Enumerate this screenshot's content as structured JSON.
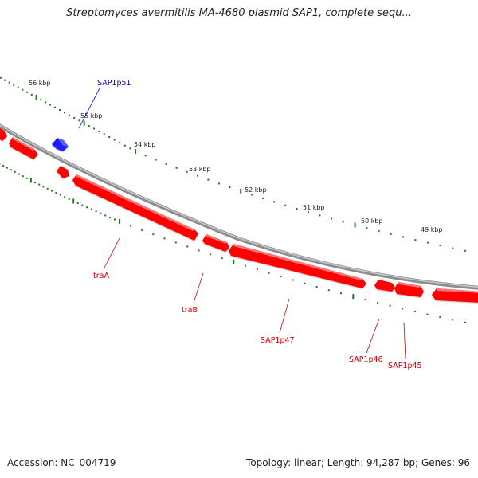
{
  "title": "Streptomyces avermitilis MA-4680 plasmid SAP1, complete sequ...",
  "footer": {
    "accession": "Accession: NC_004719",
    "summary": "Topology: linear; Length: 94,287 bp; Genes: 96"
  },
  "colors": {
    "backbone": "#888888",
    "tick": "#1f7a1f",
    "forward_gene": "#1a1aff",
    "reverse_gene": "#ff0000",
    "forward_label": "#0000cc",
    "reverse_label": "#cc0000"
  },
  "scale_labels": [
    "56 kbp",
    "55 kbp",
    "54 kbp",
    "53 kbp",
    "52 kbp",
    "51 kbp",
    "50 kbp",
    "49 kbp"
  ],
  "gene_labels": {
    "sap1p51": "SAP1p51",
    "traA": "traA",
    "traB": "traB",
    "sap1p47": "SAP1p47",
    "sap1p46": "SAP1p46",
    "sap1p45": "SAP1p45"
  }
}
